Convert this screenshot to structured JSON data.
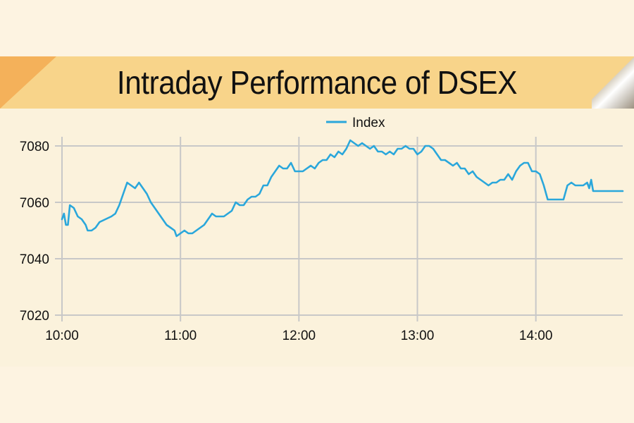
{
  "title": "Intraday Performance of DSEX",
  "colors": {
    "background": "#fdf3e1",
    "banner": "#f8d48a",
    "banner_accent": "#f4b15a",
    "line": "#2aa7db",
    "grid": "#c8c8c8"
  },
  "chart_data": {
    "type": "line",
    "title": "Intraday Performance of DSEX",
    "xlabel": "",
    "ylabel": "",
    "legend": {
      "position": "top-center"
    },
    "grid": true,
    "xlim": [
      "10:00",
      "14:44"
    ],
    "ylim": [
      7020,
      7085
    ],
    "x_ticks": [
      "10:00",
      "11:00",
      "12:00",
      "13:00",
      "14:00"
    ],
    "y_ticks": [
      7020,
      7040,
      7060,
      7080
    ],
    "series": [
      {
        "name": "Index",
        "color": "#2aa7db",
        "points": [
          [
            "10:00",
            7054
          ],
          [
            "10:01",
            7056
          ],
          [
            "10:02",
            7052
          ],
          [
            "10:03",
            7052
          ],
          [
            "10:04",
            7059
          ],
          [
            "10:06",
            7058
          ],
          [
            "10:08",
            7055
          ],
          [
            "10:10",
            7054
          ],
          [
            "10:12",
            7052
          ],
          [
            "10:13",
            7050
          ],
          [
            "10:15",
            7050
          ],
          [
            "10:17",
            7051
          ],
          [
            "10:19",
            7053
          ],
          [
            "10:22",
            7054
          ],
          [
            "10:25",
            7055
          ],
          [
            "10:27",
            7056
          ],
          [
            "10:29",
            7059
          ],
          [
            "10:31",
            7063
          ],
          [
            "10:33",
            7067
          ],
          [
            "10:35",
            7066
          ],
          [
            "10:37",
            7065
          ],
          [
            "10:39",
            7067
          ],
          [
            "10:41",
            7065
          ],
          [
            "10:43",
            7063
          ],
          [
            "10:45",
            7060
          ],
          [
            "10:47",
            7058
          ],
          [
            "10:49",
            7056
          ],
          [
            "10:51",
            7054
          ],
          [
            "10:53",
            7052
          ],
          [
            "10:55",
            7051
          ],
          [
            "10:57",
            7050
          ],
          [
            "10:58",
            7048
          ],
          [
            "11:00",
            7049
          ],
          [
            "11:02",
            7050
          ],
          [
            "11:04",
            7049
          ],
          [
            "11:06",
            7049
          ],
          [
            "11:08",
            7050
          ],
          [
            "11:10",
            7051
          ],
          [
            "11:12",
            7052
          ],
          [
            "11:14",
            7054
          ],
          [
            "11:16",
            7056
          ],
          [
            "11:18",
            7055
          ],
          [
            "11:20",
            7055
          ],
          [
            "11:22",
            7055
          ],
          [
            "11:24",
            7056
          ],
          [
            "11:26",
            7057
          ],
          [
            "11:28",
            7060
          ],
          [
            "11:30",
            7059
          ],
          [
            "11:32",
            7059
          ],
          [
            "11:34",
            7061
          ],
          [
            "11:36",
            7062
          ],
          [
            "11:38",
            7062
          ],
          [
            "11:40",
            7063
          ],
          [
            "11:42",
            7066
          ],
          [
            "11:44",
            7066
          ],
          [
            "11:46",
            7069
          ],
          [
            "11:48",
            7071
          ],
          [
            "11:50",
            7073
          ],
          [
            "11:52",
            7072
          ],
          [
            "11:54",
            7072
          ],
          [
            "11:56",
            7074
          ],
          [
            "11:58",
            7071
          ],
          [
            "12:00",
            7071
          ],
          [
            "12:02",
            7071
          ],
          [
            "12:04",
            7072
          ],
          [
            "12:06",
            7073
          ],
          [
            "12:08",
            7072
          ],
          [
            "12:10",
            7074
          ],
          [
            "12:12",
            7075
          ],
          [
            "12:14",
            7075
          ],
          [
            "12:16",
            7077
          ],
          [
            "12:18",
            7076
          ],
          [
            "12:20",
            7078
          ],
          [
            "12:22",
            7077
          ],
          [
            "12:24",
            7079
          ],
          [
            "12:26",
            7082
          ],
          [
            "12:28",
            7081
          ],
          [
            "12:30",
            7080
          ],
          [
            "12:32",
            7081
          ],
          [
            "12:34",
            7080
          ],
          [
            "12:36",
            7079
          ],
          [
            "12:38",
            7080
          ],
          [
            "12:40",
            7078
          ],
          [
            "12:42",
            7078
          ],
          [
            "12:44",
            7077
          ],
          [
            "12:46",
            7078
          ],
          [
            "12:48",
            7077
          ],
          [
            "12:50",
            7079
          ],
          [
            "12:52",
            7079
          ],
          [
            "12:54",
            7080
          ],
          [
            "12:56",
            7079
          ],
          [
            "12:58",
            7079
          ],
          [
            "13:00",
            7077
          ],
          [
            "13:02",
            7078
          ],
          [
            "13:04",
            7080
          ],
          [
            "13:06",
            7080
          ],
          [
            "13:08",
            7079
          ],
          [
            "13:10",
            7077
          ],
          [
            "13:12",
            7075
          ],
          [
            "13:14",
            7075
          ],
          [
            "13:16",
            7074
          ],
          [
            "13:18",
            7073
          ],
          [
            "13:20",
            7074
          ],
          [
            "13:22",
            7072
          ],
          [
            "13:24",
            7072
          ],
          [
            "13:26",
            7070
          ],
          [
            "13:28",
            7071
          ],
          [
            "13:30",
            7069
          ],
          [
            "13:32",
            7068
          ],
          [
            "13:34",
            7067
          ],
          [
            "13:36",
            7066
          ],
          [
            "13:38",
            7067
          ],
          [
            "13:40",
            7067
          ],
          [
            "13:42",
            7068
          ],
          [
            "13:44",
            7068
          ],
          [
            "13:46",
            7070
          ],
          [
            "13:48",
            7068
          ],
          [
            "13:50",
            7071
          ],
          [
            "13:52",
            7073
          ],
          [
            "13:54",
            7074
          ],
          [
            "13:56",
            7074
          ],
          [
            "13:58",
            7071
          ],
          [
            "14:00",
            7071
          ],
          [
            "14:02",
            7070
          ],
          [
            "14:04",
            7066
          ],
          [
            "14:06",
            7061
          ],
          [
            "14:08",
            7061
          ],
          [
            "14:10",
            7061
          ],
          [
            "14:12",
            7061
          ],
          [
            "14:14",
            7061
          ],
          [
            "14:16",
            7066
          ],
          [
            "14:18",
            7067
          ],
          [
            "14:20",
            7066
          ],
          [
            "14:22",
            7066
          ],
          [
            "14:24",
            7066
          ],
          [
            "14:26",
            7067
          ],
          [
            "14:27",
            7065
          ],
          [
            "14:28",
            7068
          ],
          [
            "14:29",
            7064
          ],
          [
            "14:30",
            7064
          ],
          [
            "14:44",
            7064
          ]
        ]
      }
    ]
  }
}
